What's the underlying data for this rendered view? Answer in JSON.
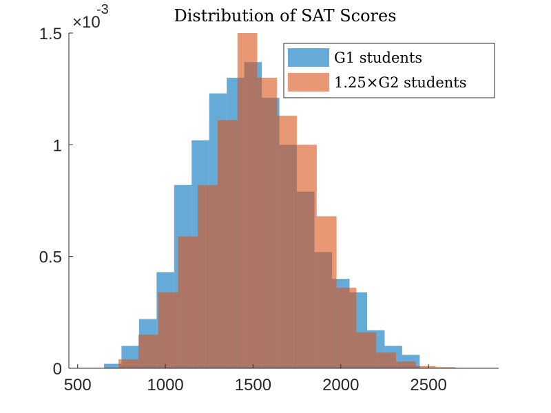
{
  "chart_data": {
    "type": "bar",
    "title": "Distribution of SAT Scores",
    "xlabel": "",
    "ylabel": "",
    "y_exponent_label": "×10",
    "y_exponent_power": "-3",
    "y_scale": 0.001,
    "xlim": [
      450,
      2900
    ],
    "ylim": [
      0,
      1.5
    ],
    "x_ticks": [
      500,
      1000,
      1500,
      2000,
      2500
    ],
    "y_ticks": [
      0,
      0.5,
      1,
      1.5
    ],
    "y_tick_labels": [
      "0",
      "0.5",
      "1",
      "1.5"
    ],
    "grid": false,
    "legend_position": "top-right",
    "series": [
      {
        "name": "G1 students",
        "color": "#0072BD",
        "opacity": 0.6,
        "bin_width": 100,
        "bin_edges": [
          650,
          750,
          850,
          950,
          1050,
          1150,
          1250,
          1350,
          1450,
          1550,
          1650,
          1750,
          1850,
          1950,
          2050,
          2150,
          2250,
          2350
        ],
        "values": [
          0.02,
          0.1,
          0.22,
          0.43,
          0.82,
          1.02,
          1.23,
          1.3,
          1.37,
          1.21,
          1.0,
          0.79,
          0.52,
          0.4,
          0.34,
          0.17,
          0.1,
          0.06
        ]
      },
      {
        "name": "1.25×G2 students",
        "color": "#D95319",
        "opacity": 0.6,
        "bin_width": 113,
        "bin_edges": [
          733,
          846,
          959,
          1072,
          1185,
          1298,
          1411,
          1524,
          1637,
          1750,
          1863,
          1976,
          2089,
          2202,
          2315,
          2428,
          2541
        ],
        "values": [
          0.04,
          0.15,
          0.34,
          0.59,
          0.82,
          1.11,
          1.51,
          1.3,
          1.13,
          1.0,
          0.68,
          0.36,
          0.16,
          0.07,
          0.03,
          0.01,
          0.005
        ]
      }
    ]
  }
}
